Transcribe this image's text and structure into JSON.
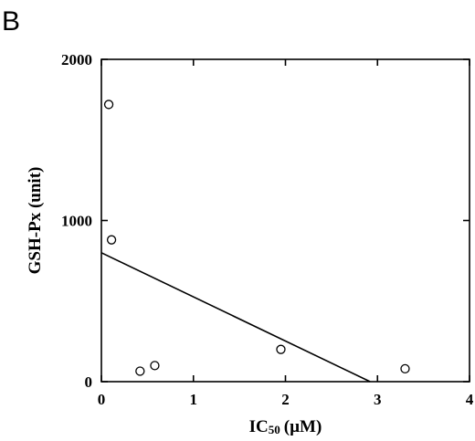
{
  "panel_label": "B",
  "chart_data": {
    "type": "scatter",
    "title": "",
    "xlabel": "IC",
    "xlabel_subscript": "50",
    "xlabel_unit": "(µM)",
    "ylabel": "GSH-Px (unit)",
    "xlim": [
      0,
      4
    ],
    "ylim": [
      0,
      2000
    ],
    "x_ticks": [
      0,
      1,
      2,
      3,
      4
    ],
    "y_ticks": [
      0,
      1000,
      2000
    ],
    "grid": false,
    "points": [
      {
        "x": 0.08,
        "y": 1720
      },
      {
        "x": 0.11,
        "y": 880
      },
      {
        "x": 0.42,
        "y": 65
      },
      {
        "x": 0.58,
        "y": 100
      },
      {
        "x": 1.95,
        "y": 200
      },
      {
        "x": 3.3,
        "y": 80
      }
    ],
    "regression_line": {
      "x1": 0,
      "y1": 800,
      "x2": 2.92,
      "y2": 0
    }
  }
}
